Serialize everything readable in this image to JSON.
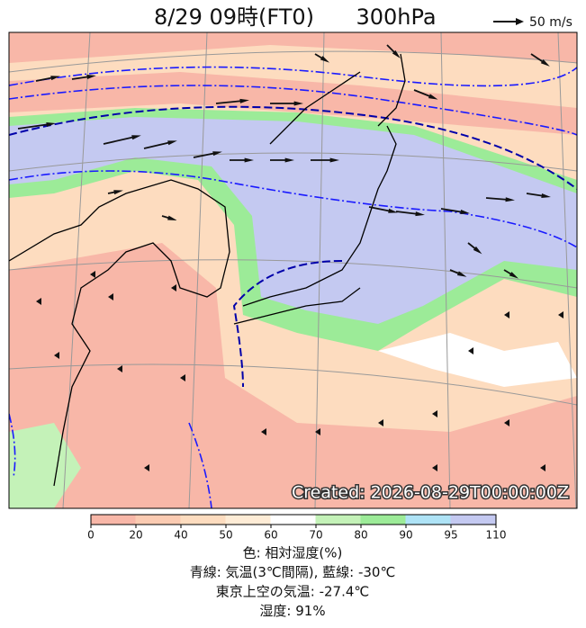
{
  "header": {
    "title": "8/29 09時(FT0)",
    "level": "300hPa"
  },
  "vector_legend": {
    "label": "50 m/s"
  },
  "map": {
    "stamp": "Created: 2026-08-29T00:00:00Z"
  },
  "colorbar": {
    "ticks": [
      0,
      20,
      40,
      50,
      60,
      70,
      80,
      90,
      95,
      110
    ],
    "colors": [
      "#f8b7a8",
      "#fbcbb2",
      "#fddcbf",
      "#feecd6",
      "#ffffff",
      "#c4f2b8",
      "#9ceb98",
      "#aee3f6",
      "#c4c9f1"
    ]
  },
  "caption": [
    "色: 相対湿度(%)",
    "青線: 気温(3℃間隔), 藍線: -30℃",
    "東京上空の気温: -27.4℃",
    "湿度: 91%"
  ]
}
